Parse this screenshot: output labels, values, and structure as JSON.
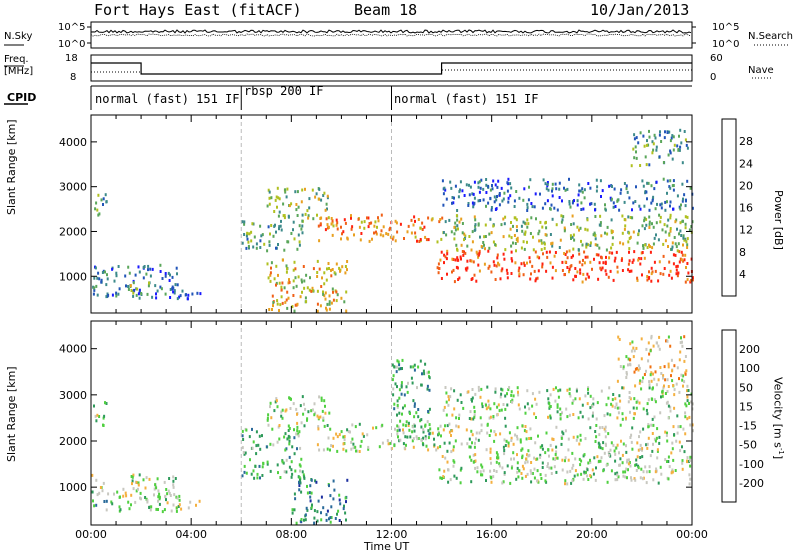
{
  "header": {
    "station": "Fort Hays East (fitACF)",
    "beam": "Beam 18",
    "date": "10/Jan/2013"
  },
  "top_panels": {
    "nsky_label": "N.Sky",
    "nsky_ticks": [
      "10^5",
      "10^0"
    ],
    "nsearch_label": "N.Search",
    "nsearch_ticks": [
      "10^5",
      "10^0"
    ],
    "freq_label": "Freq.",
    "freq_unit": "[MHz]",
    "freq_ticks": [
      "18",
      "8"
    ],
    "nave_label": "Nave",
    "nave_ticks": [
      "60",
      "0"
    ],
    "cpid_label": "CPID",
    "cpid_segments": [
      {
        "label": "normal (fast) 151 IF",
        "start_h": 0,
        "end_h": 6
      },
      {
        "label": "rbsp 200 IF",
        "start_h": 6,
        "end_h": 12
      },
      {
        "label": "normal (fast) 151 IF",
        "start_h": 12,
        "end_h": 24
      }
    ]
  },
  "chart_data": [
    {
      "type": "heatmap",
      "title": "",
      "variable": "Power",
      "xlabel": "Time UT",
      "ylabel": "Slant Range [km]",
      "xlim_hours": [
        0,
        24
      ],
      "ylim_km": [
        180,
        4600
      ],
      "yticks": [
        "1000",
        "2000",
        "3000",
        "4000"
      ],
      "colorbar": {
        "label": "Power [dB]",
        "ticks": [
          "4",
          "8",
          "12",
          "16",
          "20",
          "24",
          "28"
        ],
        "colors": [
          "#1a1aff",
          "#2255b8",
          "#3c8a8a",
          "#5aa65a",
          "#b0c020",
          "#e8a020",
          "#f06018",
          "#ff2010"
        ]
      },
      "scatter_regions": [
        {
          "t0": 0.0,
          "t1": 0.6,
          "r0": 2350,
          "r1": 2900,
          "level": 3
        },
        {
          "t0": 0.0,
          "t1": 3.5,
          "r0": 550,
          "r1": 1300,
          "level": 2
        },
        {
          "t0": 1.5,
          "t1": 2.3,
          "r0": 500,
          "r1": 900,
          "level": 4
        },
        {
          "t0": 2.5,
          "t1": 4.5,
          "r0": 520,
          "r1": 720,
          "level": 1
        },
        {
          "t0": 6.0,
          "t1": 8.5,
          "r0": 1600,
          "r1": 2300,
          "level": 3
        },
        {
          "t0": 7.0,
          "t1": 10.2,
          "r0": 250,
          "r1": 1400,
          "level": 5
        },
        {
          "t0": 7.0,
          "t1": 9.5,
          "r0": 2300,
          "r1": 3000,
          "level": 4
        },
        {
          "t0": 9.0,
          "t1": 14.0,
          "r0": 1800,
          "r1": 2400,
          "level": 6
        },
        {
          "t0": 13.8,
          "t1": 24.0,
          "r0": 900,
          "r1": 1600,
          "level": 7
        },
        {
          "t0": 14.0,
          "t1": 24.0,
          "r0": 1600,
          "r1": 2400,
          "level": 4
        },
        {
          "t0": 14.0,
          "t1": 24.0,
          "r0": 2500,
          "r1": 3200,
          "level": 2
        },
        {
          "t0": 21.5,
          "t1": 23.8,
          "r0": 3500,
          "r1": 4300,
          "level": 3
        }
      ]
    },
    {
      "type": "heatmap",
      "title": "",
      "variable": "Velocity",
      "xlabel": "Time UT",
      "ylabel": "Slant Range [km]",
      "xlim_hours": [
        0,
        24
      ],
      "ylim_km": [
        180,
        4600
      ],
      "xticks": [
        "00:00",
        "04:00",
        "08:00",
        "12:00",
        "16:00",
        "20:00",
        "00:00"
      ],
      "yticks": [
        "1000",
        "2000",
        "3000",
        "4000"
      ],
      "colorbar": {
        "label": "Velocity [m s",
        "label_sup": "-1",
        "label_end": "]",
        "ticks": [
          "200",
          "100",
          "50",
          "15",
          "-15",
          "-50",
          "-100",
          "-200"
        ],
        "colors": [
          "#1c2fa0",
          "#2a6a9a",
          "#2e9a5a",
          "#50d040",
          "#c8c8c0",
          "#f4b040",
          "#f07010",
          "#e83020",
          "#e00000"
        ]
      },
      "scatter_regions": [
        {
          "t0": 0.0,
          "t1": 0.6,
          "r0": 2350,
          "r1": 2900,
          "level": 4
        },
        {
          "t0": 0.0,
          "t1": 3.5,
          "r0": 800,
          "r1": 1300,
          "level": 4
        },
        {
          "t0": 0.0,
          "t1": 1.5,
          "r0": 500,
          "r1": 750,
          "level": 3
        },
        {
          "t0": 1.5,
          "t1": 3.5,
          "r0": 500,
          "r1": 900,
          "level": 4
        },
        {
          "t0": 3.2,
          "t1": 4.3,
          "r0": 550,
          "r1": 750,
          "level": 5
        },
        {
          "t0": 6.0,
          "t1": 8.5,
          "r0": 1200,
          "r1": 2300,
          "level": 3
        },
        {
          "t0": 8.0,
          "t1": 10.2,
          "r0": 250,
          "r1": 1200,
          "level": 2
        },
        {
          "t0": 7.0,
          "t1": 9.5,
          "r0": 2300,
          "r1": 3000,
          "level": 4
        },
        {
          "t0": 9.0,
          "t1": 14.0,
          "r0": 1800,
          "r1": 2400,
          "level": 4
        },
        {
          "t0": 12.0,
          "t1": 13.5,
          "r0": 2000,
          "r1": 3800,
          "level": 3
        },
        {
          "t0": 13.8,
          "t1": 24.0,
          "r0": 1100,
          "r1": 2400,
          "level": 4
        },
        {
          "t0": 14.0,
          "t1": 24.0,
          "r0": 2500,
          "r1": 3200,
          "level": 4
        },
        {
          "t0": 21.0,
          "t1": 23.8,
          "r0": 3200,
          "r1": 4300,
          "level": 5
        }
      ]
    }
  ]
}
